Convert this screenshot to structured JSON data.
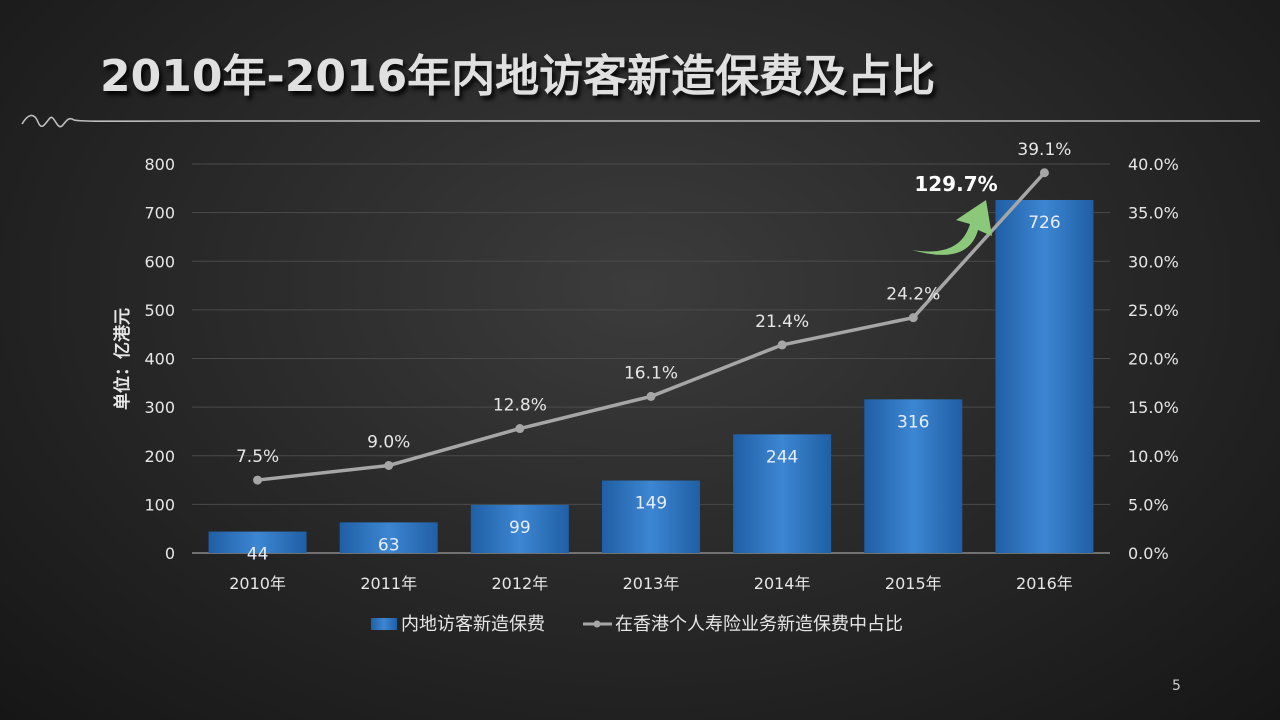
{
  "title": "2010年-2016年内地访客新造保费及占比",
  "page_number": "5",
  "chart_data": {
    "type": "bar",
    "categories": [
      "2010年",
      "2011年",
      "2012年",
      "2013年",
      "2014年",
      "2015年",
      "2016年"
    ],
    "series": [
      {
        "name": "内地访客新造保费",
        "type": "bar",
        "axis": "left",
        "values": [
          44,
          63,
          99,
          149,
          244,
          316,
          726
        ],
        "labels": [
          "44",
          "63",
          "99",
          "149",
          "244",
          "316",
          "726"
        ],
        "color": "#3479c4"
      },
      {
        "name": "在香港个人寿险业务新造保费中占比",
        "type": "line",
        "axis": "right",
        "values": [
          7.5,
          9.0,
          12.8,
          16.1,
          21.4,
          24.2,
          39.1
        ],
        "labels": [
          "7.5%",
          "9.0%",
          "12.8%",
          "16.1%",
          "21.4%",
          "24.2%",
          "39.1%"
        ],
        "color": "#a6a6a6"
      }
    ],
    "y_left": {
      "label": "单位：亿港元",
      "min": 0,
      "max": 800,
      "ticks": [
        "0",
        "100",
        "200",
        "300",
        "400",
        "500",
        "600",
        "700",
        "800"
      ]
    },
    "y_right": {
      "min": 0,
      "max": 40,
      "ticks": [
        "0.0%",
        "5.0%",
        "10.0%",
        "15.0%",
        "20.0%",
        "25.0%",
        "30.0%",
        "35.0%",
        "40.0%"
      ]
    },
    "annotation": {
      "text": "129.7%",
      "color": "#8cc87a"
    },
    "legend_position": "bottom",
    "grid": true
  }
}
